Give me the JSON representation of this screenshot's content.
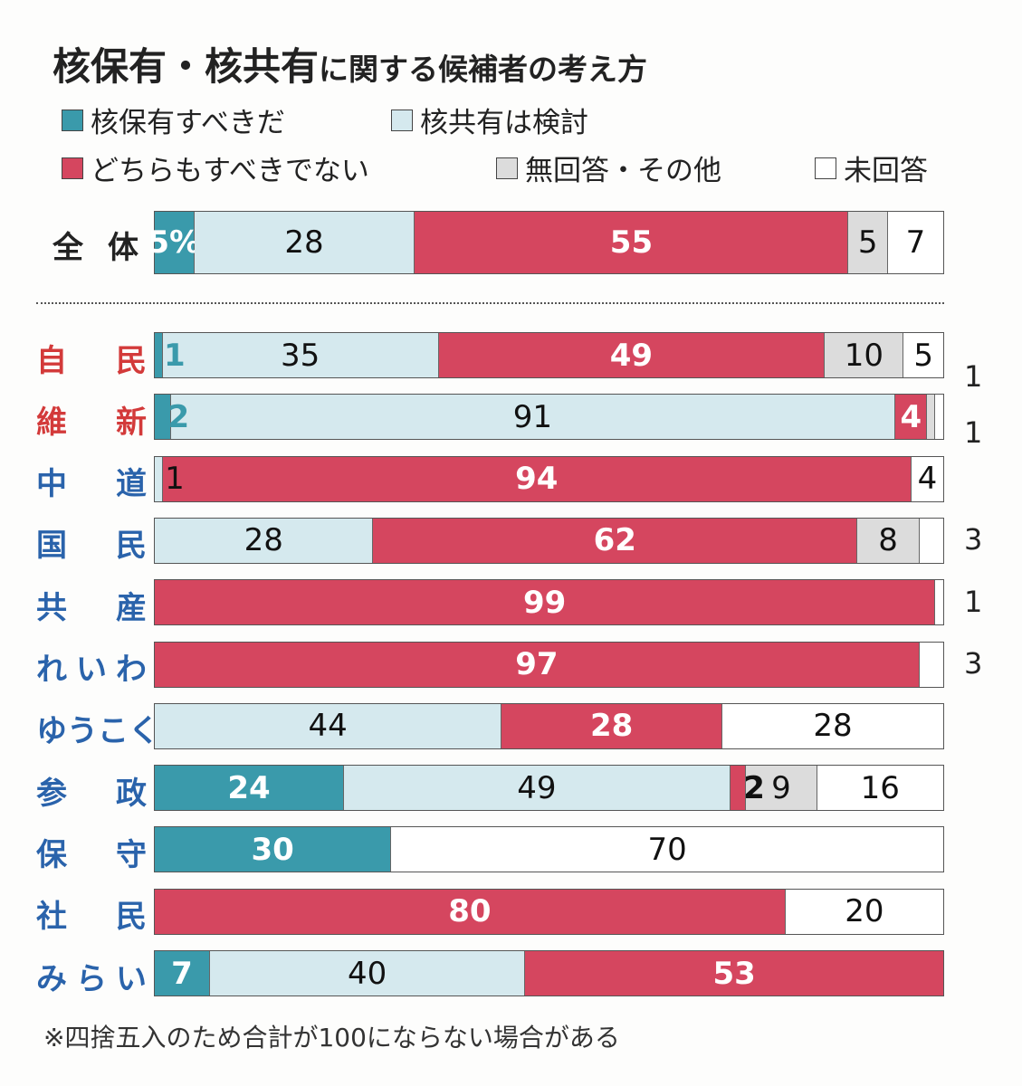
{
  "title": {
    "main": "核保有・核共有",
    "sub": "に関する候補者の考え方"
  },
  "footnote": "※四捨五入のため合計が100にならない場合がある",
  "colors": {
    "hold": "#3a9aab",
    "share": "#d5e9ee",
    "neither": "#d5465f",
    "other": "#dcdcdc",
    "unanswered": "#ffffff",
    "party_red": "#d33a3a",
    "party_blue": "#2a63ab"
  },
  "chart_data": {
    "type": "bar",
    "orientation": "horizontal",
    "stacked": true,
    "unit": "%",
    "title": "核保有・核共有に関する候補者の考え方",
    "legend": [
      "核保有すべきだ",
      "核共有は検討",
      "どちらもすべきでない",
      "無回答・その他",
      "未回答"
    ],
    "legend_placement": "top",
    "categories": [
      "全体",
      "自民",
      "維新",
      "中道",
      "国民",
      "共産",
      "れいわ",
      "ゆうこく",
      "参政",
      "保守",
      "社民",
      "みらい"
    ],
    "series": [
      {
        "name": "核保有すべきだ",
        "values": [
          5,
          1,
          2,
          0,
          0,
          0,
          0,
          0,
          24,
          30,
          0,
          7
        ]
      },
      {
        "name": "核共有は検討",
        "values": [
          28,
          35,
          91,
          1,
          28,
          0,
          0,
          44,
          49,
          0,
          0,
          40
        ]
      },
      {
        "name": "どちらもすべきでない",
        "values": [
          55,
          49,
          4,
          94,
          62,
          99,
          97,
          28,
          2,
          0,
          80,
          53
        ]
      },
      {
        "name": "無回答・その他",
        "values": [
          5,
          10,
          1,
          0,
          8,
          0,
          0,
          0,
          9,
          0,
          0,
          0
        ]
      },
      {
        "name": "未回答",
        "values": [
          7,
          5,
          1,
          4,
          3,
          1,
          3,
          28,
          16,
          70,
          20,
          0
        ]
      }
    ],
    "first_label_suffix": "%"
  }
}
